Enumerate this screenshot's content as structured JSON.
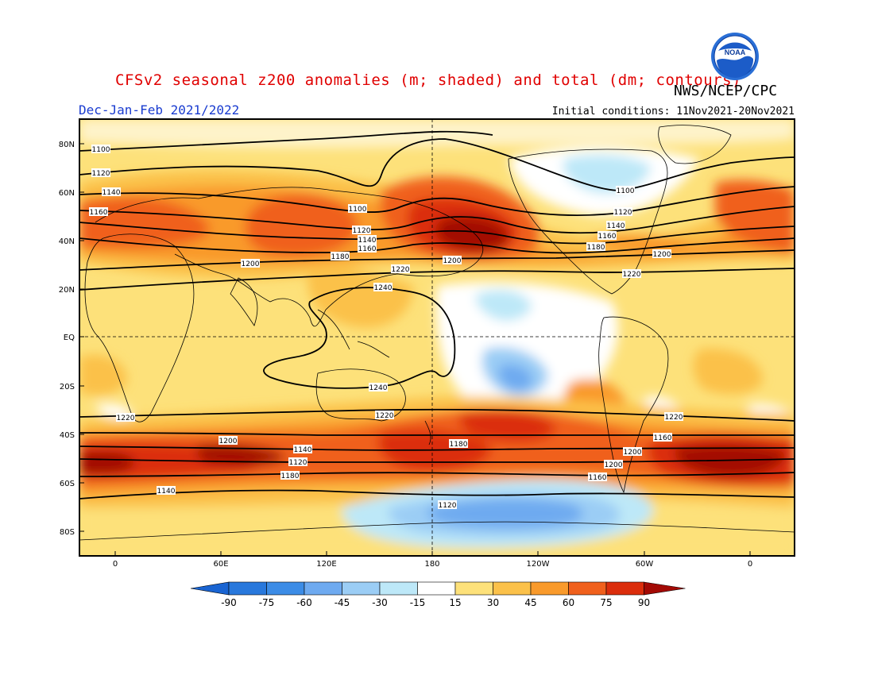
{
  "header": {
    "title": "CFSv2 seasonal z200 anomalies (m; shaded) and total (dm; contours)",
    "agency": "NWS/NCEP/CPC",
    "season": "Dec-Jan-Feb 2021/2022",
    "initial_conditions": "Initial conditions: 11Nov2021-20Nov2021"
  },
  "logo": {
    "icon": "noaa-logo-icon",
    "text": "NOAA"
  },
  "map": {
    "lat_ticks": [
      "80N",
      "60N",
      "40N",
      "20N",
      "EQ",
      "20S",
      "40S",
      "60S",
      "80S"
    ],
    "lon_ticks": [
      "0",
      "60E",
      "120E",
      "180",
      "120W",
      "60W",
      "0"
    ],
    "contour_labels": [
      "1100",
      "1120",
      "1140",
      "1160",
      "1100",
      "1120",
      "1140",
      "1160",
      "1180",
      "1200",
      "1100",
      "1120",
      "1140",
      "1160",
      "1180",
      "1200",
      "1200",
      "1220",
      "1220",
      "1240",
      "1240",
      "1220",
      "1220",
      "1220",
      "1200",
      "1180",
      "1160",
      "1140",
      "1200",
      "1120",
      "1200",
      "1180",
      "1160",
      "1140",
      "1120"
    ]
  },
  "colorbar": {
    "ticks": [
      "-90",
      "-75",
      "-60",
      "-45",
      "-30",
      "-15",
      "15",
      "30",
      "45",
      "60",
      "75",
      "90"
    ],
    "colors": [
      "#1964d2",
      "#2878dc",
      "#3c8ce6",
      "#6eaaf0",
      "#9bcdf5",
      "#bde8f8",
      "#ffffff",
      "#fde17a",
      "#fbc14a",
      "#f99a2b",
      "#f0601c",
      "#db2d0c",
      "#a30a05"
    ]
  }
}
